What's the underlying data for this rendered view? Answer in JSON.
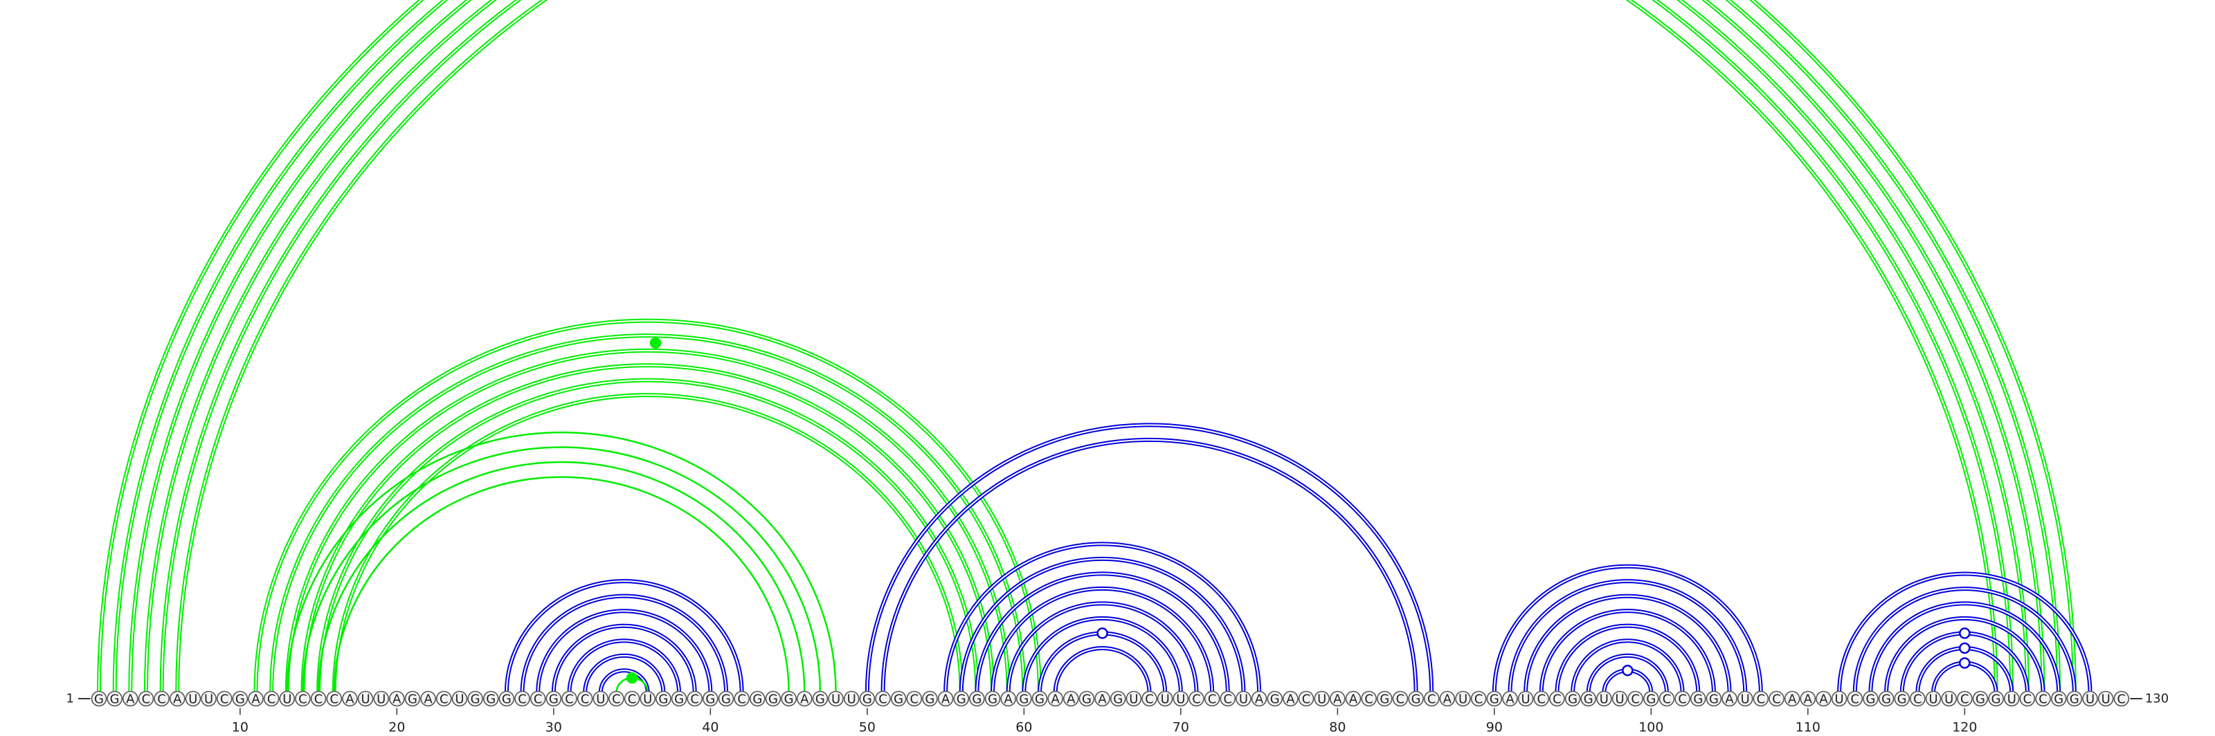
{
  "start_label": "1",
  "end_label": "130",
  "sequence": "GGACCAUUCGACUCCCAUUAGACUGGGCCGCCUCCUGGCGGCGGGAGUUGCGCGAGGGAGGAAGAGUCUUCCCUAGACUAACGCGCAUCGAUCCGGUUCGCCGGAUCCAAAUCGGGCUUCGGUCCGGUUC",
  "tick_labels": [
    "10",
    "20",
    "30",
    "40",
    "50",
    "60",
    "70",
    "80",
    "90",
    "100",
    "110",
    "120"
  ],
  "colors": {
    "green": "#00ee00",
    "blue": "#0000dd"
  },
  "arc_groups": [
    {
      "name": "outer-green-helix",
      "color": "green",
      "stroke": "double",
      "pairs": [
        [
          1,
          127
        ],
        [
          2,
          126
        ],
        [
          3,
          125
        ],
        [
          4,
          124
        ],
        [
          5,
          123
        ],
        [
          6,
          122
        ]
      ]
    },
    {
      "name": "green-long-helix",
      "color": "green",
      "stroke": "double",
      "pairs": [
        [
          11,
          61
        ],
        [
          12,
          60
        ],
        [
          13,
          59
        ],
        [
          14,
          58
        ],
        [
          15,
          57
        ],
        [
          16,
          56
        ]
      ]
    },
    {
      "name": "green-mid-helix",
      "color": "green",
      "stroke": "single",
      "pairs": [
        [
          13,
          48
        ],
        [
          14,
          47
        ],
        [
          15,
          46
        ],
        [
          16,
          45
        ]
      ]
    },
    {
      "name": "blue-hairpin-30s",
      "color": "blue",
      "stroke": "double",
      "pairs": [
        [
          27,
          42
        ],
        [
          28,
          41
        ],
        [
          29,
          40
        ],
        [
          30,
          39
        ],
        [
          31,
          38
        ],
        [
          32,
          37
        ],
        [
          33,
          36
        ]
      ]
    },
    {
      "name": "green-small-arc",
      "color": "green",
      "stroke": "single",
      "pairs": [
        [
          34,
          36
        ]
      ]
    },
    {
      "name": "blue-long-helix",
      "color": "blue",
      "stroke": "double",
      "pairs": [
        [
          50,
          86
        ],
        [
          51,
          85
        ]
      ]
    },
    {
      "name": "blue-hairpin-60s",
      "color": "blue",
      "stroke": "double",
      "pairs": [
        [
          55,
          75
        ],
        [
          56,
          74
        ],
        [
          57,
          73
        ],
        [
          58,
          72
        ],
        [
          59,
          71
        ],
        [
          60,
          70
        ],
        [
          61,
          69
        ],
        [
          62,
          68
        ]
      ]
    },
    {
      "name": "blue-hairpin-90s",
      "color": "blue",
      "stroke": "double",
      "pairs": [
        [
          90,
          107
        ],
        [
          91,
          106
        ],
        [
          92,
          105
        ],
        [
          93,
          104
        ],
        [
          94,
          103
        ],
        [
          95,
          102
        ],
        [
          96,
          101
        ],
        [
          97,
          100
        ]
      ]
    },
    {
      "name": "blue-hairpin-120s",
      "color": "blue",
      "stroke": "double",
      "pairs": [
        [
          112,
          128
        ],
        [
          113,
          127
        ],
        [
          114,
          126
        ],
        [
          115,
          125
        ],
        [
          116,
          124
        ],
        [
          117,
          123
        ],
        [
          118,
          122
        ]
      ]
    }
  ],
  "markers": [
    {
      "color": "green",
      "filled": true,
      "pair": [
        13,
        60
      ]
    },
    {
      "color": "green",
      "filled": true,
      "pair": [
        34,
        36
      ]
    },
    {
      "color": "blue",
      "filled": false,
      "pair": [
        61,
        69
      ]
    },
    {
      "color": "blue",
      "filled": false,
      "pair": [
        97,
        100
      ]
    },
    {
      "color": "blue",
      "filled": false,
      "pair": [
        116,
        124
      ]
    },
    {
      "color": "blue",
      "filled": false,
      "pair": [
        117,
        123
      ]
    },
    {
      "color": "blue",
      "filled": false,
      "pair": [
        118,
        122
      ]
    }
  ]
}
